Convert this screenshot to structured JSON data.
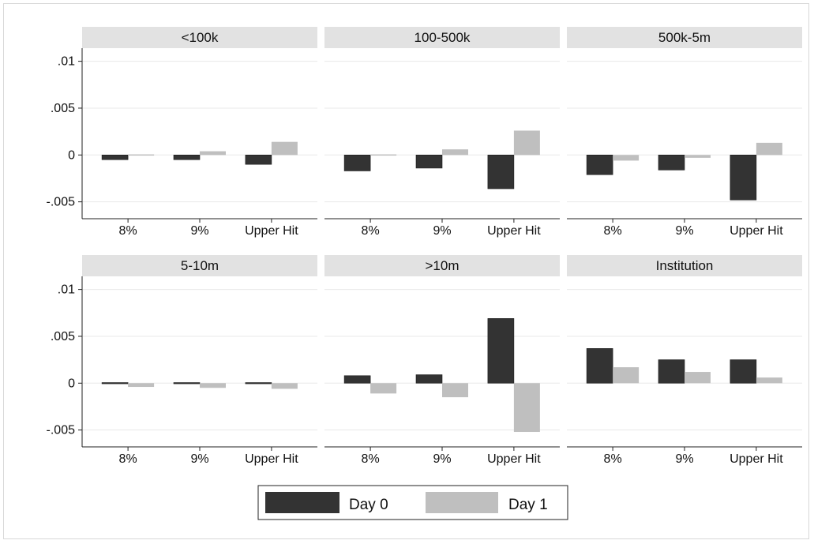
{
  "chart_data": {
    "type": "bar",
    "layout": "facet-grid 2x3",
    "categories": [
      "8%",
      "9%",
      "Upper Hit"
    ],
    "ylim": [
      -0.0068,
      0.0114
    ],
    "yticks": [
      ".01",
      ".005",
      "0",
      "-.005"
    ],
    "ytick_values": [
      0.01,
      0.005,
      0,
      -0.005
    ],
    "grid": true,
    "legend_position": "bottom-center",
    "colors": {
      "Day 0": "#333333",
      "Day 1": "#bfbfbf",
      "strip": "#e2e2e2",
      "grid": "#e8e8e8"
    },
    "series_names": [
      "Day 0",
      "Day 1"
    ],
    "panels": [
      {
        "title": "<100k",
        "series": [
          {
            "name": "Day 0",
            "values": [
              -0.0005,
              -0.0005,
              -0.001
            ]
          },
          {
            "name": "Day 1",
            "values": [
              0.0001,
              0.0004,
              0.0014
            ]
          }
        ]
      },
      {
        "title": "100-500k",
        "series": [
          {
            "name": "Day 0",
            "values": [
              -0.0017,
              -0.0014,
              -0.0036
            ]
          },
          {
            "name": "Day 1",
            "values": [
              0.0001,
              0.0006,
              0.0026
            ]
          }
        ]
      },
      {
        "title": "500k-5m",
        "series": [
          {
            "name": "Day 0",
            "values": [
              -0.0021,
              -0.0016,
              -0.0048
            ]
          },
          {
            "name": "Day 1",
            "values": [
              -0.0006,
              -0.0003,
              0.0013
            ]
          }
        ]
      },
      {
        "title": "5-10m",
        "series": [
          {
            "name": "Day 0",
            "values": [
              -0.0001,
              0.0001,
              -0.0001
            ]
          },
          {
            "name": "Day 1",
            "values": [
              -0.0004,
              -0.0005,
              -0.0006
            ]
          }
        ]
      },
      {
        "title": ">10m",
        "series": [
          {
            "name": "Day 0",
            "values": [
              0.0008,
              0.0009,
              0.0069
            ]
          },
          {
            "name": "Day 1",
            "values": [
              -0.0011,
              -0.0015,
              -0.0052
            ]
          }
        ]
      },
      {
        "title": "Institution",
        "series": [
          {
            "name": "Day 0",
            "values": [
              0.0037,
              0.0025,
              0.0025
            ]
          },
          {
            "name": "Day 1",
            "values": [
              0.0017,
              0.0012,
              0.0006
            ]
          }
        ]
      }
    ]
  }
}
